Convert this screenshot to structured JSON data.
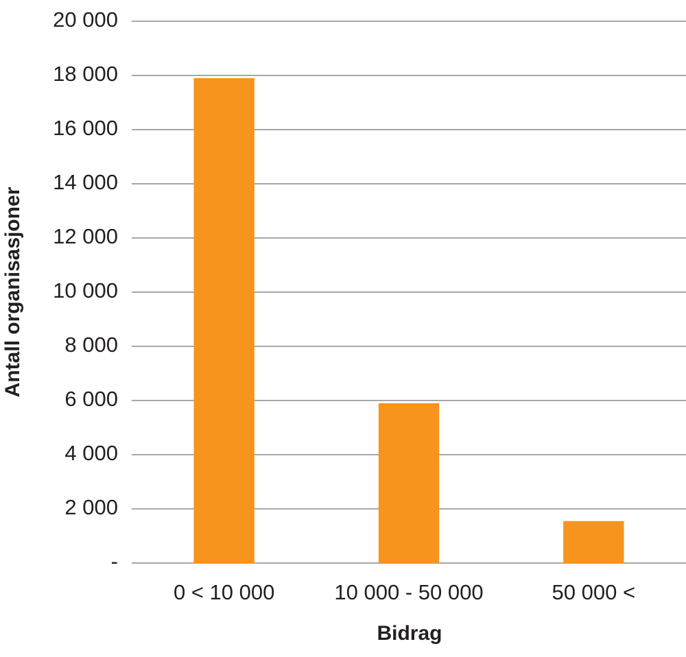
{
  "chart_data": {
    "type": "bar",
    "x_label": "Bidrag",
    "y_label": "Antall organisasjoner",
    "categories": [
      "0 < 10 000",
      "10 000 - 50 000",
      "50 000 <"
    ],
    "values": [
      17900,
      5900,
      1550
    ],
    "color": "#f7941d",
    "ylim": [
      0,
      20000
    ],
    "yticks": [
      {
        "value": 0,
        "label": "-"
      },
      {
        "value": 2000,
        "label": "2 000"
      },
      {
        "value": 4000,
        "label": "4 000"
      },
      {
        "value": 6000,
        "label": "6 000"
      },
      {
        "value": 8000,
        "label": "8 000"
      },
      {
        "value": 10000,
        "label": "10 000"
      },
      {
        "value": 12000,
        "label": "12 000"
      },
      {
        "value": 14000,
        "label": "14 000"
      },
      {
        "value": 16000,
        "label": "16 000"
      },
      {
        "value": 18000,
        "label": "18 000"
      },
      {
        "value": 20000,
        "label": "20 000"
      }
    ],
    "grid": true
  }
}
